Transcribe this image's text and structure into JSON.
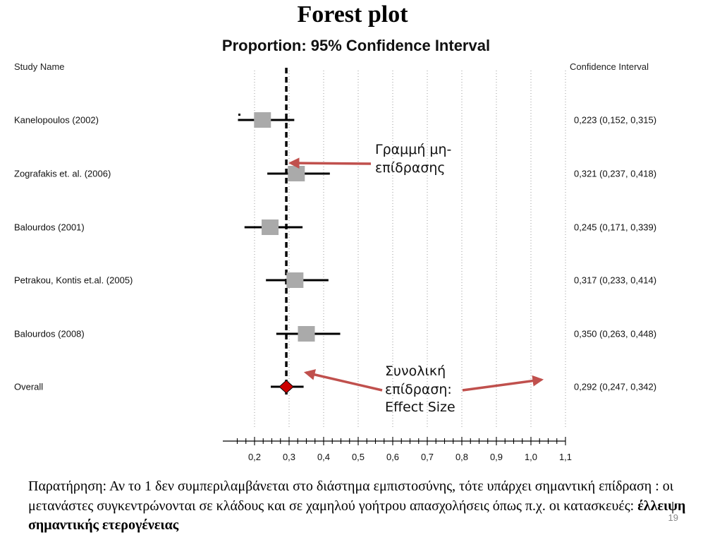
{
  "slide": {
    "title": "Forest plot",
    "page_number": "19"
  },
  "annotations": {
    "no_effect_line": [
      "Γραμμή μη-",
      "επίδρασης"
    ],
    "overall_effect": [
      "Συνολική",
      "επίδραση:",
      "Effect Size"
    ]
  },
  "note": {
    "text": "Παρατήρηση: Αν το 1 δεν συμπεριλαμβάνεται στο διάστημα εμπιστοσύνης, τότε υπάρχει σημαντική επίδραση : οι μετανάστες συγκεντρώνονται σε κλάδους και σε χαμηλού γοήτρου απασχολήσεις όπως π.χ. οι κατασκευές: ",
    "emphasis": "έλλειψη σημαντικής ετερογένειας"
  },
  "colors": {
    "box": "#aaaaaa",
    "ci_line": "#000000",
    "overall_diamond": "#cc0000",
    "arrow": "#c0504d"
  },
  "chart_data": {
    "type": "forest",
    "title": "Proportion: 95% Confidence Interval",
    "column_headers": {
      "study": "Study Name",
      "ci": "Confidence Interval"
    },
    "xlim": [
      0.15,
      1.1
    ],
    "reference_line": 0.292,
    "ticks": [
      "0,2",
      "0,3",
      "0,4",
      "0,5",
      "0,6",
      "0,7",
      "0,8",
      "0,9",
      "1,0",
      "1,1"
    ],
    "tick_values": [
      0.2,
      0.3,
      0.4,
      0.5,
      0.6,
      0.7,
      0.8,
      0.9,
      1.0,
      1.1
    ],
    "studies": [
      {
        "name": "Kanelopoulos (2002)",
        "estimate": 0.223,
        "lower": 0.152,
        "upper": 0.315,
        "label": "0,223 (0,152, 0,315)"
      },
      {
        "name": "Zografakis et. al.  (2006)",
        "estimate": 0.321,
        "lower": 0.237,
        "upper": 0.418,
        "label": "0,321 (0,237, 0,418)"
      },
      {
        "name": "Balourdos (2001)",
        "estimate": 0.245,
        "lower": 0.171,
        "upper": 0.339,
        "label": "0,245 (0,171, 0,339)"
      },
      {
        "name": "Petrakou, Kontis et.al.  (2005)",
        "estimate": 0.317,
        "lower": 0.233,
        "upper": 0.414,
        "label": "0,317 (0,233, 0,414)"
      },
      {
        "name": "Balourdos (2008)",
        "estimate": 0.35,
        "lower": 0.263,
        "upper": 0.448,
        "label": "0,350 (0,263, 0,448)"
      }
    ],
    "overall": {
      "name": "Overall",
      "estimate": 0.292,
      "lower": 0.247,
      "upper": 0.342,
      "label": "0,292 (0,247, 0,342)"
    }
  }
}
